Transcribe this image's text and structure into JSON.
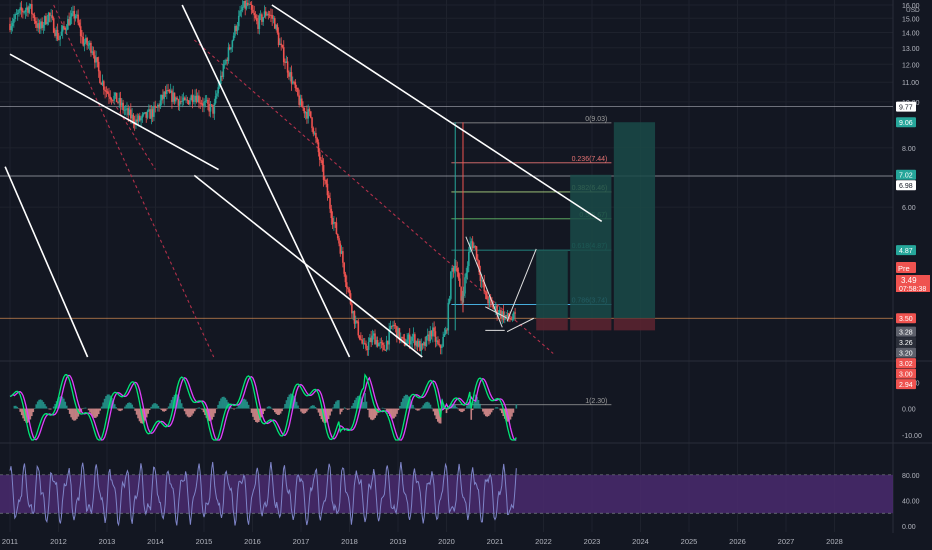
{
  "colors": {
    "background": "#131722",
    "grid": "#1e222d",
    "candle_up": "#26a69a",
    "candle_down": "#ef5350",
    "trendline": "#ffffff",
    "dashed_channel": "#b2304a",
    "macd_line": "#00e676",
    "signal_line": "#e040fb",
    "rsi_band": "#4a2a6e",
    "rsi_line": "#7e84c8",
    "projection_fill": "#1a4a48",
    "axis_text": "#b2b5be"
  },
  "chart_data": {
    "type": "candlestick",
    "price_axis": {
      "currency": "USD",
      "scale": "log",
      "range": [
        2.9,
        16.0
      ],
      "ticks": [
        "16.00",
        "15.00",
        "14.00",
        "13.00",
        "12.00",
        "11.00",
        "10.00",
        "8.00",
        "6.00"
      ]
    },
    "time_axis": {
      "range": [
        2010.9,
        2029.0
      ],
      "labels": [
        "2011",
        "2012",
        "2013",
        "2014",
        "2015",
        "2016",
        "2017",
        "2018",
        "2019",
        "2020",
        "2021",
        "2022",
        "2023",
        "2024",
        "2025",
        "2026",
        "2027",
        "2028"
      ]
    },
    "price_badges": [
      {
        "label": "9.77",
        "value": 9.77,
        "style": "white"
      },
      {
        "label": "9.06",
        "value": 9.06,
        "style": "teal"
      },
      {
        "label": "7.02",
        "value": 7.02,
        "style": "teal"
      },
      {
        "label": "6.98",
        "value": 6.98,
        "style": "white"
      },
      {
        "label": "4.87",
        "value": 4.87,
        "style": "teal"
      },
      {
        "label": "3.50",
        "value": 3.5,
        "style": "red"
      },
      {
        "label": "3.28",
        "value": 3.28,
        "style": "grey"
      },
      {
        "label": "3.26",
        "value": 3.26,
        "style": "dark"
      },
      {
        "label": "3.20",
        "value": 3.2,
        "style": "grey"
      },
      {
        "label": "3.02",
        "value": 3.02,
        "style": "red"
      },
      {
        "label": "3.00",
        "value": 3.0,
        "style": "red"
      },
      {
        "label": "2.94",
        "value": 2.94,
        "style": "red"
      }
    ],
    "last_price": {
      "pre_label": "Pre",
      "value": "3.49",
      "countdown": "07:58:38"
    },
    "fibonacci": [
      {
        "label": "0(9.03)",
        "value": 9.03,
        "color": "#9e9e9e"
      },
      {
        "label": "0.236(7.44)",
        "value": 7.44,
        "color": "#e57373"
      },
      {
        "label": "0.382(6.46)",
        "value": 6.46,
        "color": "#aed581"
      },
      {
        "label": "0.5(5.67)",
        "value": 5.67,
        "color": "#66bb6a"
      },
      {
        "label": "0.618(4.87)",
        "value": 4.87,
        "color": "#26a69a"
      },
      {
        "label": "0.786(3.74)",
        "value": 3.74,
        "color": "#4fc3f7"
      },
      {
        "label": "1(2.30)",
        "value": 2.3,
        "color": "#9e9e9e"
      }
    ],
    "price_path": [
      [
        2011.0,
        14.6
      ],
      [
        2011.2,
        15.4
      ],
      [
        2011.4,
        15.9
      ],
      [
        2011.6,
        14.2
      ],
      [
        2011.8,
        15.3
      ],
      [
        2012.0,
        13.6
      ],
      [
        2012.2,
        14.8
      ],
      [
        2012.35,
        15.3
      ],
      [
        2012.5,
        13.4
      ],
      [
        2012.7,
        13.0
      ],
      [
        2012.85,
        11.3
      ],
      [
        2013.0,
        10.5
      ],
      [
        2013.2,
        10.1
      ],
      [
        2013.4,
        9.5
      ],
      [
        2013.6,
        9.1
      ],
      [
        2013.8,
        9.3
      ],
      [
        2014.0,
        9.6
      ],
      [
        2014.2,
        10.4
      ],
      [
        2014.4,
        10.2
      ],
      [
        2014.6,
        9.9
      ],
      [
        2014.8,
        10.4
      ],
      [
        2015.0,
        9.9
      ],
      [
        2015.2,
        9.6
      ],
      [
        2015.3,
        10.8
      ],
      [
        2015.5,
        12.7
      ],
      [
        2015.65,
        14.3
      ],
      [
        2015.8,
        15.8
      ],
      [
        2015.9,
        16.0
      ],
      [
        2016.1,
        14.6
      ],
      [
        2016.3,
        15.5
      ],
      [
        2016.45,
        14.8
      ],
      [
        2016.55,
        13.3
      ],
      [
        2016.7,
        12.0
      ],
      [
        2016.85,
        10.8
      ],
      [
        2017.0,
        9.8
      ],
      [
        2017.2,
        9.3
      ],
      [
        2017.35,
        7.9
      ],
      [
        2017.5,
        6.7
      ],
      [
        2017.65,
        5.7
      ],
      [
        2017.8,
        5.0
      ],
      [
        2017.95,
        4.1
      ],
      [
        2018.1,
        3.5
      ],
      [
        2018.3,
        3.0
      ],
      [
        2018.5,
        3.2
      ],
      [
        2018.7,
        3.0
      ],
      [
        2018.9,
        3.4
      ],
      [
        2019.1,
        3.1
      ],
      [
        2019.3,
        3.2
      ],
      [
        2019.5,
        3.0
      ],
      [
        2019.7,
        3.3
      ],
      [
        2019.85,
        3.0
      ],
      [
        2020.0,
        3.3
      ],
      [
        2020.1,
        4.4
      ],
      [
        2020.2,
        4.6
      ],
      [
        2020.3,
        3.8
      ],
      [
        2020.4,
        4.3
      ],
      [
        2020.5,
        5.1
      ],
      [
        2020.6,
        4.9
      ],
      [
        2020.7,
        4.3
      ],
      [
        2020.8,
        3.9
      ],
      [
        2020.95,
        3.7
      ],
      [
        2021.1,
        3.6
      ],
      [
        2021.25,
        3.5
      ],
      [
        2021.4,
        3.5
      ]
    ],
    "macd": {
      "range": [
        -12,
        17
      ],
      "ticks": [
        "10.00",
        "0.00",
        "-10.00"
      ]
    },
    "rsi": {
      "range": [
        -3,
        100
      ],
      "ticks": [
        "80.00",
        "40.00",
        "0.00"
      ]
    }
  }
}
